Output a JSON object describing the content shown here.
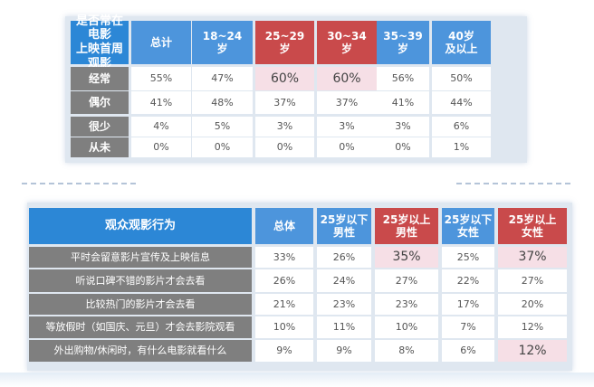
{
  "table1": {
    "corner": "是否常在电影\n上映首周观影",
    "columns": [
      "总计",
      "18~24\n岁",
      "25~29\n岁",
      "30~34\n岁",
      "35~39\n岁",
      "40岁\n及以上"
    ],
    "highlight_columns": [
      2,
      3
    ],
    "rows": [
      {
        "label": "经常",
        "values": [
          "55%",
          "47%",
          "60%",
          "60%",
          "56%",
          "50%"
        ],
        "highlight": [
          2,
          3
        ]
      },
      {
        "label": "偶尔",
        "values": [
          "41%",
          "48%",
          "37%",
          "37%",
          "41%",
          "44%"
        ],
        "highlight": []
      },
      {
        "label": "很少",
        "values": [
          "4%",
          "5%",
          "3%",
          "3%",
          "3%",
          "6%"
        ],
        "highlight": []
      },
      {
        "label": "从未",
        "values": [
          "0%",
          "0%",
          "0%",
          "0%",
          "0%",
          "1%"
        ],
        "highlight": []
      }
    ]
  },
  "table2": {
    "corner": "观众观影行为",
    "columns": [
      "总体",
      "25岁以下\n男性",
      "25岁以上\n男性",
      "25岁以下\n女性",
      "25岁以上\n女性"
    ],
    "highlight_columns": [
      2,
      4
    ],
    "rows": [
      {
        "label": "平时会留意影片宣传及上映信息",
        "values": [
          "33%",
          "26%",
          "35%",
          "25%",
          "37%"
        ],
        "highlight": [
          2,
          4
        ]
      },
      {
        "label": "听说口碑不错的影片才会去看",
        "values": [
          "26%",
          "24%",
          "27%",
          "22%",
          "27%"
        ],
        "highlight": []
      },
      {
        "label": "比较热门的影片才会去看",
        "values": [
          "21%",
          "23%",
          "23%",
          "17%",
          "20%"
        ],
        "highlight": []
      },
      {
        "label": "等放假时（如国庆、元旦）才会去影院观看",
        "values": [
          "10%",
          "11%",
          "10%",
          "7%",
          "12%"
        ],
        "highlight": []
      },
      {
        "label": "外出购物/休闲时，有什么电影就看什么",
        "values": [
          "9%",
          "9%",
          "8%",
          "6%",
          "12%"
        ],
        "highlight": [
          4
        ]
      }
    ]
  },
  "colors": {
    "header_blue": "#4d95dc",
    "corner_blue": "#2c87d6",
    "header_red": "#c94a4b",
    "row_label_gray": "#7f7f7f",
    "highlight_pink": "#f6dfe6",
    "panel_bg": "#dfe7f0"
  }
}
